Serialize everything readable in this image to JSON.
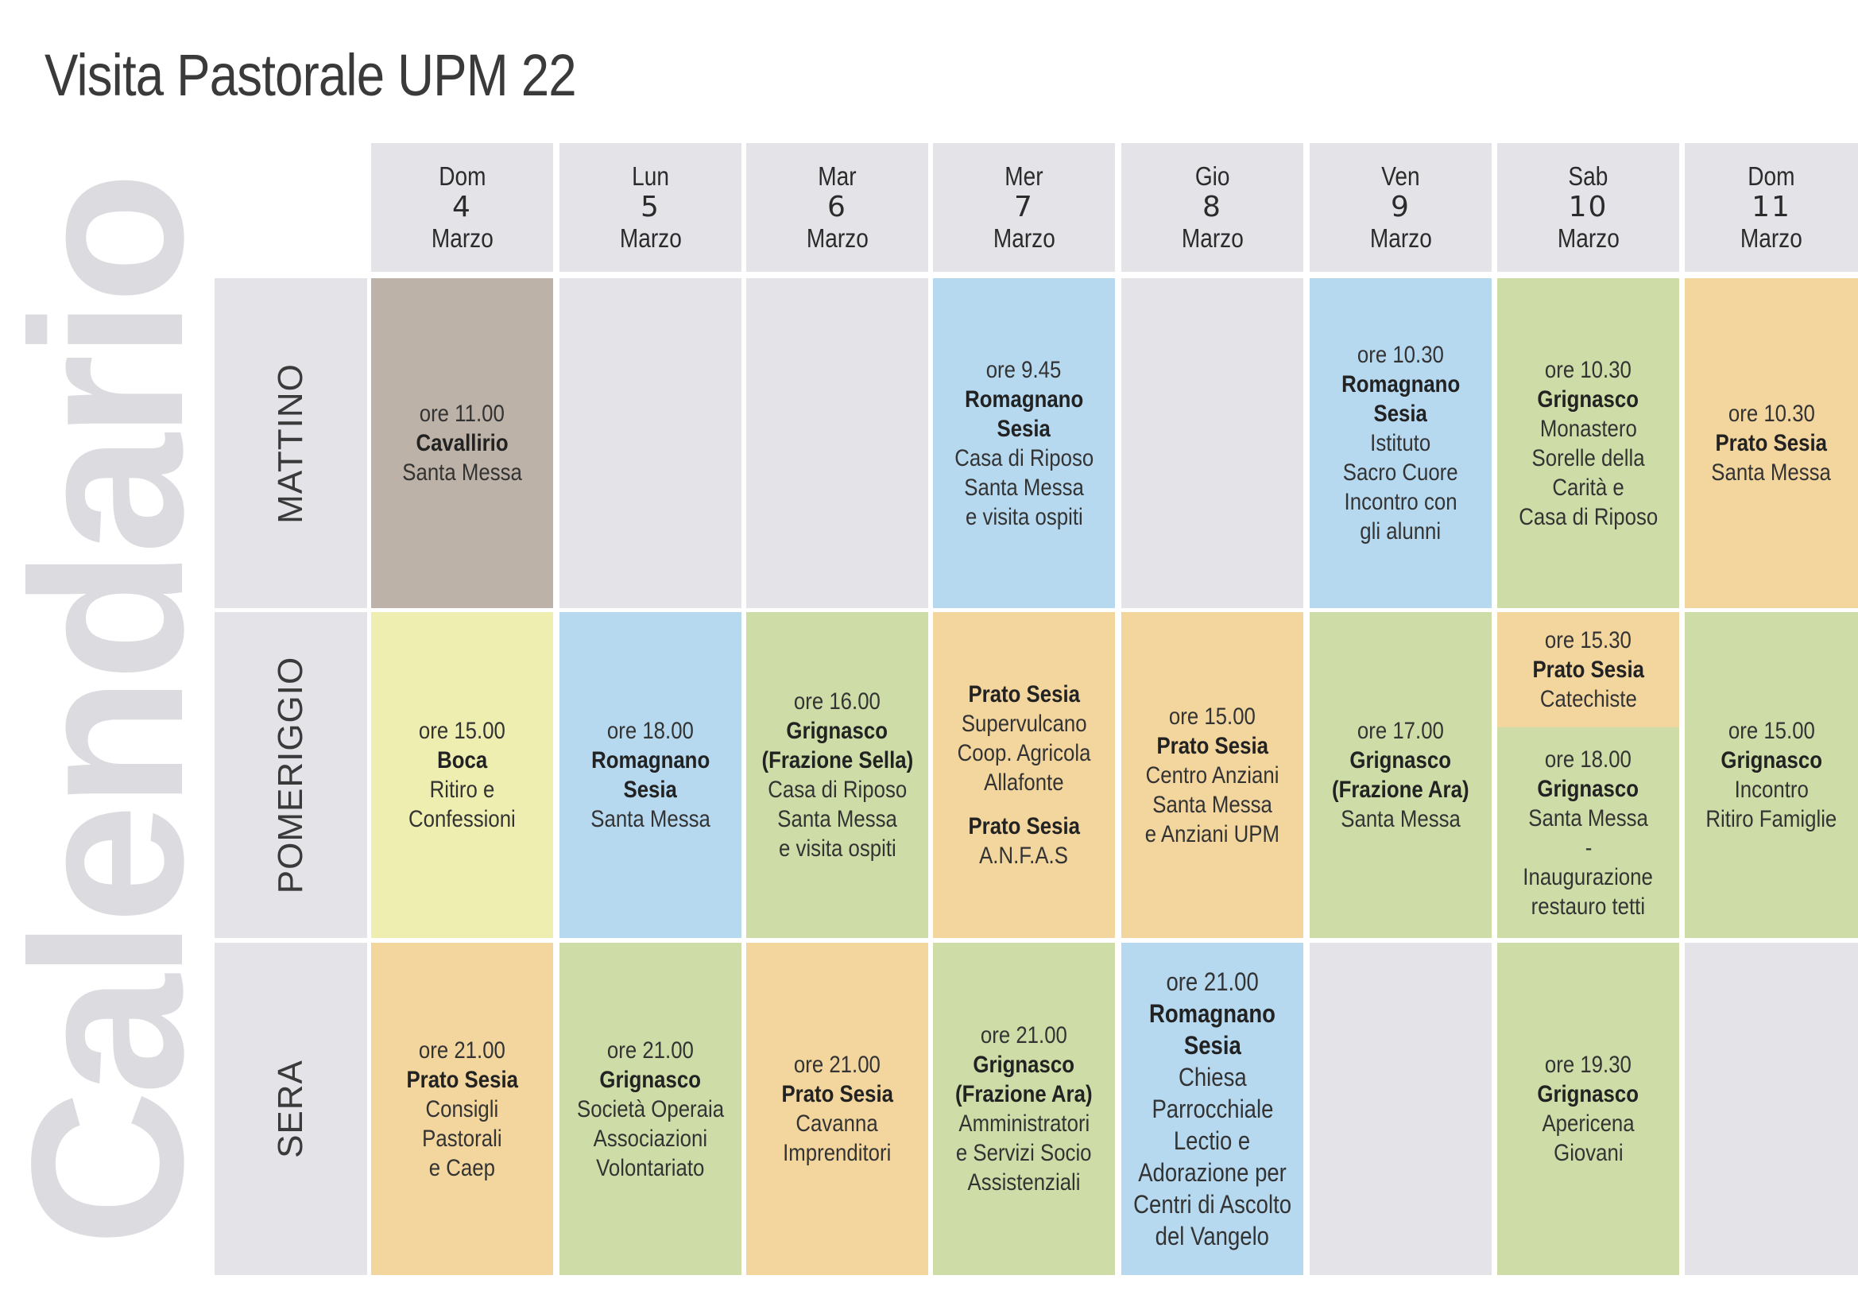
{
  "title": "Visita Pastorale UPM 22",
  "side_word": "Calendario",
  "colors": {
    "gray": "#e3e3e8",
    "brown": "#bcb2a7",
    "blue": "#b6d9f0",
    "green": "#cedda7",
    "orange": "#f3d59e",
    "yellow": "#eeeeb1"
  },
  "days": [
    {
      "dow": "Dom",
      "num": "4",
      "month": "Marzo"
    },
    {
      "dow": "Lun",
      "num": "5",
      "month": "Marzo"
    },
    {
      "dow": "Mar",
      "num": "6",
      "month": "Marzo"
    },
    {
      "dow": "Mer",
      "num": "7",
      "month": "Marzo"
    },
    {
      "dow": "Gio",
      "num": "8",
      "month": "Marzo"
    },
    {
      "dow": "Ven",
      "num": "9",
      "month": "Marzo"
    },
    {
      "dow": "Sab",
      "num": "10",
      "month": "Marzo"
    },
    {
      "dow": "Dom",
      "num": "11",
      "month": "Marzo"
    }
  ],
  "rows": [
    {
      "label": "MATTINO"
    },
    {
      "label": "POMERIGGIO"
    },
    {
      "label": "SERA"
    }
  ],
  "mattino": {
    "d4": {
      "time": "ore 11.00",
      "place": "Cavallirio",
      "desc1": "Santa Messa"
    },
    "d7": {
      "time": "ore 9.45",
      "place1": "Romagnano",
      "place2": "Sesia",
      "desc1": "Casa di Riposo",
      "desc2": "Santa Messa",
      "desc3": "e visita ospiti"
    },
    "d9": {
      "time": "ore 10.30",
      "place1": "Romagnano",
      "place2": "Sesia",
      "desc1": "Istituto",
      "desc2": "Sacro Cuore",
      "desc3": "Incontro con",
      "desc4": "gli alunni"
    },
    "d10": {
      "time": "ore 10.30",
      "place": "Grignasco",
      "desc1": "Monastero",
      "desc2": "Sorelle della",
      "desc3": "Carità  e",
      "desc4": "Casa di Riposo"
    },
    "d11": {
      "time": "ore 10.30",
      "place": "Prato Sesia",
      "desc1": "Santa Messa"
    }
  },
  "pomeriggio": {
    "d4": {
      "time": "ore 15.00",
      "place": "Boca",
      "desc1": "Ritiro e",
      "desc2": "Confessioni"
    },
    "d5": {
      "time": "ore 18.00",
      "place1": "Romagnano",
      "place2": "Sesia",
      "desc1": "Santa Messa"
    },
    "d6": {
      "time": "ore 16.00",
      "place1": "Grignasco",
      "place2": "(Frazione Sella)",
      "desc1": "Casa di Riposo",
      "desc2": "Santa Messa",
      "desc3": "e visita ospiti"
    },
    "d7": {
      "place1": "Prato Sesia",
      "desc1": "Supervulcano",
      "desc2": "Coop. Agricola",
      "desc3": "Allafonte",
      "place2": "Prato Sesia",
      "desc4": "A.N.F.A.S"
    },
    "d8": {
      "time": "ore 15.00",
      "place": "Prato Sesia",
      "desc1": "Centro Anziani",
      "desc2": "Santa Messa",
      "desc3": "e Anziani UPM"
    },
    "d9": {
      "time": "ore 17.00",
      "place1": "Grignasco",
      "place2": "(Frazione Ara)",
      "desc1": "Santa Messa"
    },
    "d10a": {
      "time": "ore 15.30",
      "place": "Prato Sesia",
      "desc1": "Catechiste"
    },
    "d10b": {
      "time": "ore 18.00",
      "place": "Grignasco",
      "desc1": "Santa Messa",
      "desc2": "-",
      "desc3": "Inaugurazione",
      "desc4": "restauro tetti"
    },
    "d11": {
      "time": "ore 15.00",
      "place": "Grignasco",
      "desc1": "Incontro",
      "desc2": "Ritiro Famiglie"
    }
  },
  "sera": {
    "d4": {
      "time": "ore 21.00",
      "place": "Prato Sesia",
      "desc1": "Consigli",
      "desc2": "Pastorali",
      "desc3": "e Caep"
    },
    "d5": {
      "time": "ore 21.00",
      "place": "Grignasco",
      "desc1": "Società Operaia",
      "desc2": "Associazioni",
      "desc3": "Volontariato"
    },
    "d6": {
      "time": "ore 21.00",
      "place": "Prato Sesia",
      "desc1": "Cavanna",
      "desc2": "Imprenditori"
    },
    "d7": {
      "time": "ore 21.00",
      "place1": "Grignasco",
      "place2": "(Frazione Ara)",
      "desc1": "Amministratori",
      "desc2": "e Servizi Socio",
      "desc3": "Assistenziali"
    },
    "d8": {
      "time": "ore 21.00",
      "place1": "Romagnano",
      "place2": "Sesia",
      "desc1": "Chiesa",
      "desc2": "Parrocchiale",
      "desc3": "Lectio e",
      "desc4": "Adorazione per",
      "desc5": "Centri di Ascolto",
      "desc6": "del Vangelo"
    },
    "d10": {
      "time": "ore 19.30",
      "place": "Grignasco",
      "desc1": "Apericena",
      "desc2": "Giovani"
    }
  }
}
